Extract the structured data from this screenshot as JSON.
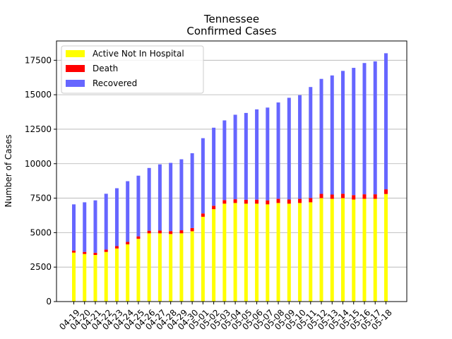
{
  "chart_data": {
    "type": "bar",
    "stacked": true,
    "title": "Tennessee",
    "subtitle": "Confirmed Cases",
    "xlabel": "",
    "ylabel": "Number of Cases",
    "ylim": [
      0,
      18900
    ],
    "yticks": [
      0,
      2500,
      5000,
      7500,
      10000,
      12500,
      15000,
      17500
    ],
    "grid": "y",
    "legend_position": "top-left",
    "categories": [
      "04-19",
      "04-20",
      "04-21",
      "04-22",
      "04-23",
      "04-24",
      "04-25",
      "04-26",
      "04-27",
      "04-28",
      "04-29",
      "04-30",
      "05-01",
      "05-02",
      "05-03",
      "05-04",
      "05-05",
      "05-06",
      "05-07",
      "05-08",
      "05-09",
      "05-10",
      "05-11",
      "05-12",
      "05-13",
      "05-14",
      "05-15",
      "05-16",
      "05-17",
      "05-18"
    ],
    "series": [
      {
        "name": "Active Not In Hospital",
        "color": "#ffff00",
        "values": [
          3550,
          3450,
          3380,
          3600,
          3850,
          4150,
          4550,
          4950,
          4950,
          4900,
          4950,
          5100,
          6150,
          6700,
          7100,
          7150,
          7100,
          7100,
          7050,
          7150,
          7100,
          7150,
          7200,
          7500,
          7450,
          7500,
          7400,
          7450,
          7450,
          7800
        ]
      },
      {
        "name": "Death",
        "color": "#ff0000",
        "values": [
          150,
          150,
          160,
          170,
          170,
          180,
          180,
          190,
          200,
          210,
          220,
          230,
          240,
          250,
          260,
          270,
          280,
          290,
          290,
          300,
          300,
          300,
          310,
          310,
          310,
          320,
          320,
          330,
          330,
          340
        ]
      },
      {
        "name": "Recovered",
        "color": "#6666ff",
        "values": [
          3350,
          3600,
          3800,
          4050,
          4200,
          4400,
          4400,
          4550,
          4800,
          4950,
          5150,
          5430,
          5460,
          5660,
          5780,
          6130,
          6300,
          6550,
          6730,
          6990,
          7380,
          7520,
          8050,
          8340,
          8640,
          8910,
          9230,
          9520,
          9640,
          9870
        ]
      }
    ]
  }
}
